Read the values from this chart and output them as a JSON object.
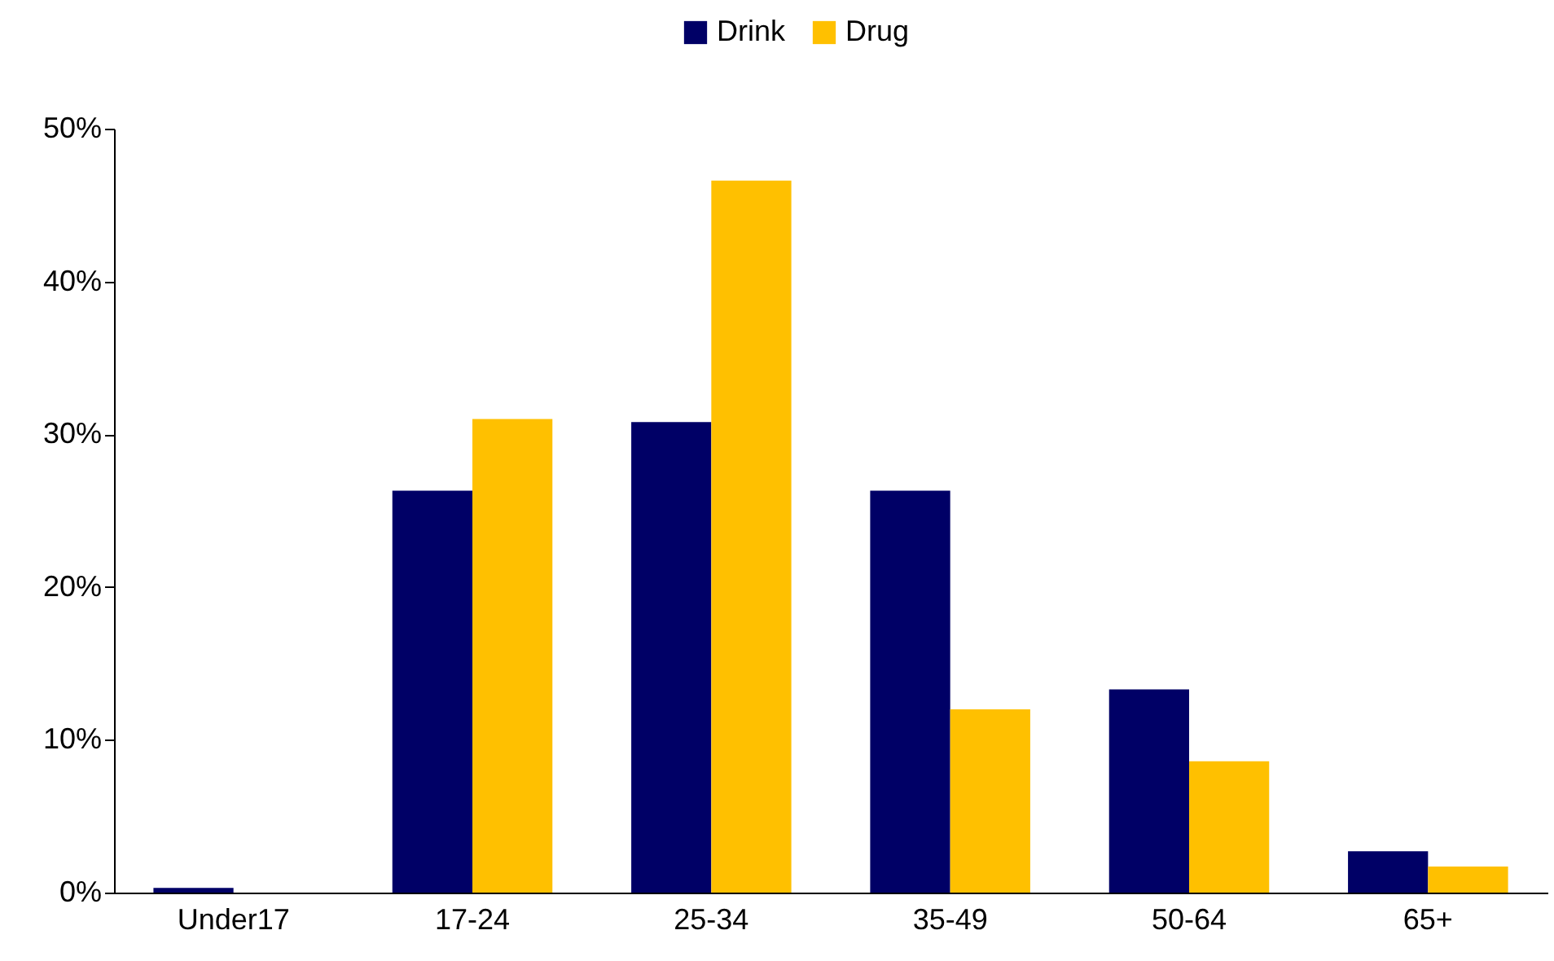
{
  "chart_data": {
    "type": "bar",
    "categories": [
      "Under17",
      "17-24",
      "25-34",
      "35-49",
      "50-64",
      "65+"
    ],
    "series": [
      {
        "name": "Drink",
        "color": "#000066",
        "values": [
          0.3,
          26.3,
          30.8,
          26.3,
          13.3,
          2.7
        ]
      },
      {
        "name": "Drug",
        "color": "#ffc000",
        "values": [
          0,
          31.0,
          46.6,
          12.0,
          8.6,
          1.7
        ]
      }
    ],
    "ylim": [
      0,
      50
    ],
    "yticks": [
      {
        "value": 0,
        "label": "0%"
      },
      {
        "value": 10,
        "label": "10%"
      },
      {
        "value": 20,
        "label": "20%"
      },
      {
        "value": 30,
        "label": "30%"
      },
      {
        "value": 40,
        "label": "40%"
      },
      {
        "value": 50,
        "label": "50%"
      }
    ],
    "grid": false,
    "legend": "top"
  }
}
